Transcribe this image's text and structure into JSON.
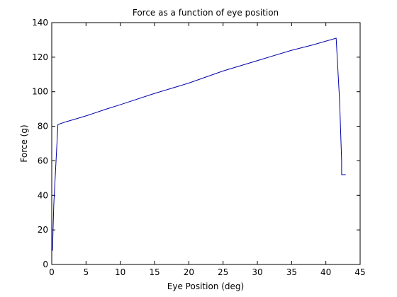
{
  "chart_data": {
    "type": "line",
    "title": "Force as a function of eye position",
    "xlabel": "Eye Position (deg)",
    "ylabel": "Force (g)",
    "xlim": [
      0,
      45
    ],
    "ylim": [
      0,
      140
    ],
    "xticks": [
      0,
      5,
      10,
      15,
      20,
      25,
      30,
      35,
      40,
      45
    ],
    "yticks": [
      0,
      20,
      40,
      60,
      80,
      100,
      120,
      140
    ],
    "grid": false,
    "legend": "none",
    "series": [
      {
        "color": "#0000aa",
        "x": [
          0.1,
          0.3,
          0.9,
          2,
          5,
          8,
          10,
          15,
          20,
          25,
          30,
          35,
          38,
          41.5,
          42,
          42.3,
          42.3,
          42.9
        ],
        "y": [
          8,
          35,
          81,
          82.5,
          86,
          90,
          92.5,
          99,
          105,
          112,
          118,
          124,
          127,
          131,
          95,
          60,
          52,
          52
        ]
      }
    ]
  }
}
